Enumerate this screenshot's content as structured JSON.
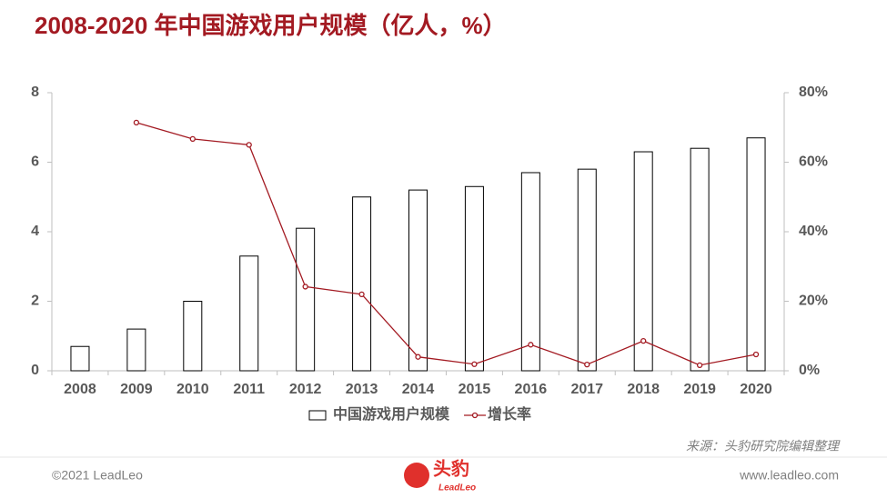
{
  "chart_data": {
    "type": "bar",
    "title": "2008-2020 年中国游戏用户规模（亿人，%）",
    "categories": [
      "2008",
      "2009",
      "2010",
      "2011",
      "2012",
      "2013",
      "2014",
      "2015",
      "2016",
      "2017",
      "2018",
      "2019",
      "2020"
    ],
    "series": [
      {
        "name": "中国游戏用户规模",
        "type": "bar",
        "color": "#ffffff",
        "values": [
          0.7,
          1.2,
          2.0,
          3.3,
          4.1,
          5.0,
          5.2,
          5.3,
          5.7,
          5.8,
          6.3,
          6.4,
          6.7
        ]
      },
      {
        "name": "增长率",
        "type": "line",
        "axis": "y2",
        "color": "#a31a22",
        "values": [
          null,
          71.4,
          66.7,
          65.0,
          24.2,
          22.0,
          4.0,
          1.9,
          7.5,
          1.8,
          8.6,
          1.6,
          4.7
        ]
      }
    ],
    "ylim": [
      0,
      8
    ],
    "yticks": [
      0,
      2,
      4,
      6,
      8
    ],
    "y2lim": [
      0,
      80
    ],
    "y2ticks": [
      {
        "value": 0,
        "label": "0%"
      },
      {
        "value": 20,
        "label": "20%"
      },
      {
        "value": 40,
        "label": "40%"
      },
      {
        "value": 60,
        "label": "60%"
      },
      {
        "value": 80,
        "label": "80%"
      }
    ],
    "grid": false,
    "legend": "bottom",
    "source": "来源：头豹研究院编辑整理"
  },
  "footer": {
    "copyright": "©2021 LeadLeo",
    "logo": "头豹",
    "logo_sub": "LeadLeo",
    "website": "www.leadleo.com"
  }
}
